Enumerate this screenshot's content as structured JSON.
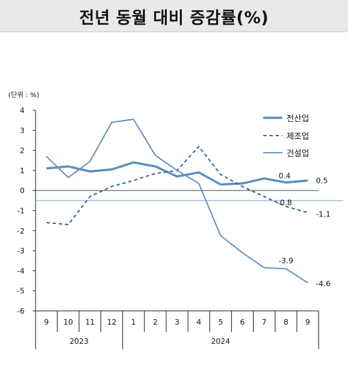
{
  "title": "전년 동월 대비 증감률(%)",
  "chart_data": {
    "type": "line",
    "unit_label": "(단위 : %)",
    "categories": [
      "9",
      "10",
      "11",
      "12",
      "1",
      "2",
      "3",
      "4",
      "5",
      "6",
      "7",
      "8",
      "9"
    ],
    "year_labels": [
      "2023",
      "2024"
    ],
    "ylim": [
      -6,
      4
    ],
    "yticks": [
      "4",
      "3",
      "2",
      "1",
      "0",
      "-1",
      "-2",
      "-3",
      "-4",
      "-5",
      "-6"
    ],
    "reference_line": -0.5,
    "legend_position": "top-right",
    "series": [
      {
        "name": "전산업",
        "color": "#5b8ec1",
        "style": "solid-thick",
        "values": [
          1.1,
          1.2,
          0.95,
          1.05,
          1.4,
          1.2,
          0.7,
          0.9,
          0.3,
          0.35,
          0.6,
          0.4,
          0.5
        ]
      },
      {
        "name": "제조업",
        "color": "#2f5d8c",
        "style": "dashed",
        "values": [
          -1.6,
          -1.7,
          -0.3,
          0.2,
          0.5,
          0.85,
          1.0,
          2.2,
          0.8,
          0.2,
          -0.3,
          -0.8,
          -1.1
        ]
      },
      {
        "name": "건설업",
        "color": "#5b8ec1",
        "style": "solid",
        "values": [
          1.7,
          0.65,
          1.45,
          3.4,
          3.55,
          1.75,
          1.0,
          0.35,
          -2.25,
          -3.1,
          -3.85,
          -3.9,
          -4.6
        ]
      }
    ],
    "annotations": [
      {
        "text": "0.4",
        "series": 0,
        "index": 11
      },
      {
        "text": "0.5",
        "series": 0,
        "index": 12
      },
      {
        "text": "-0.8",
        "series": 1,
        "index": 11
      },
      {
        "text": "-1.1",
        "series": 1,
        "index": 12
      },
      {
        "text": "-3.9",
        "series": 2,
        "index": 11
      },
      {
        "text": "-4.6",
        "series": 2,
        "index": 12
      }
    ]
  }
}
